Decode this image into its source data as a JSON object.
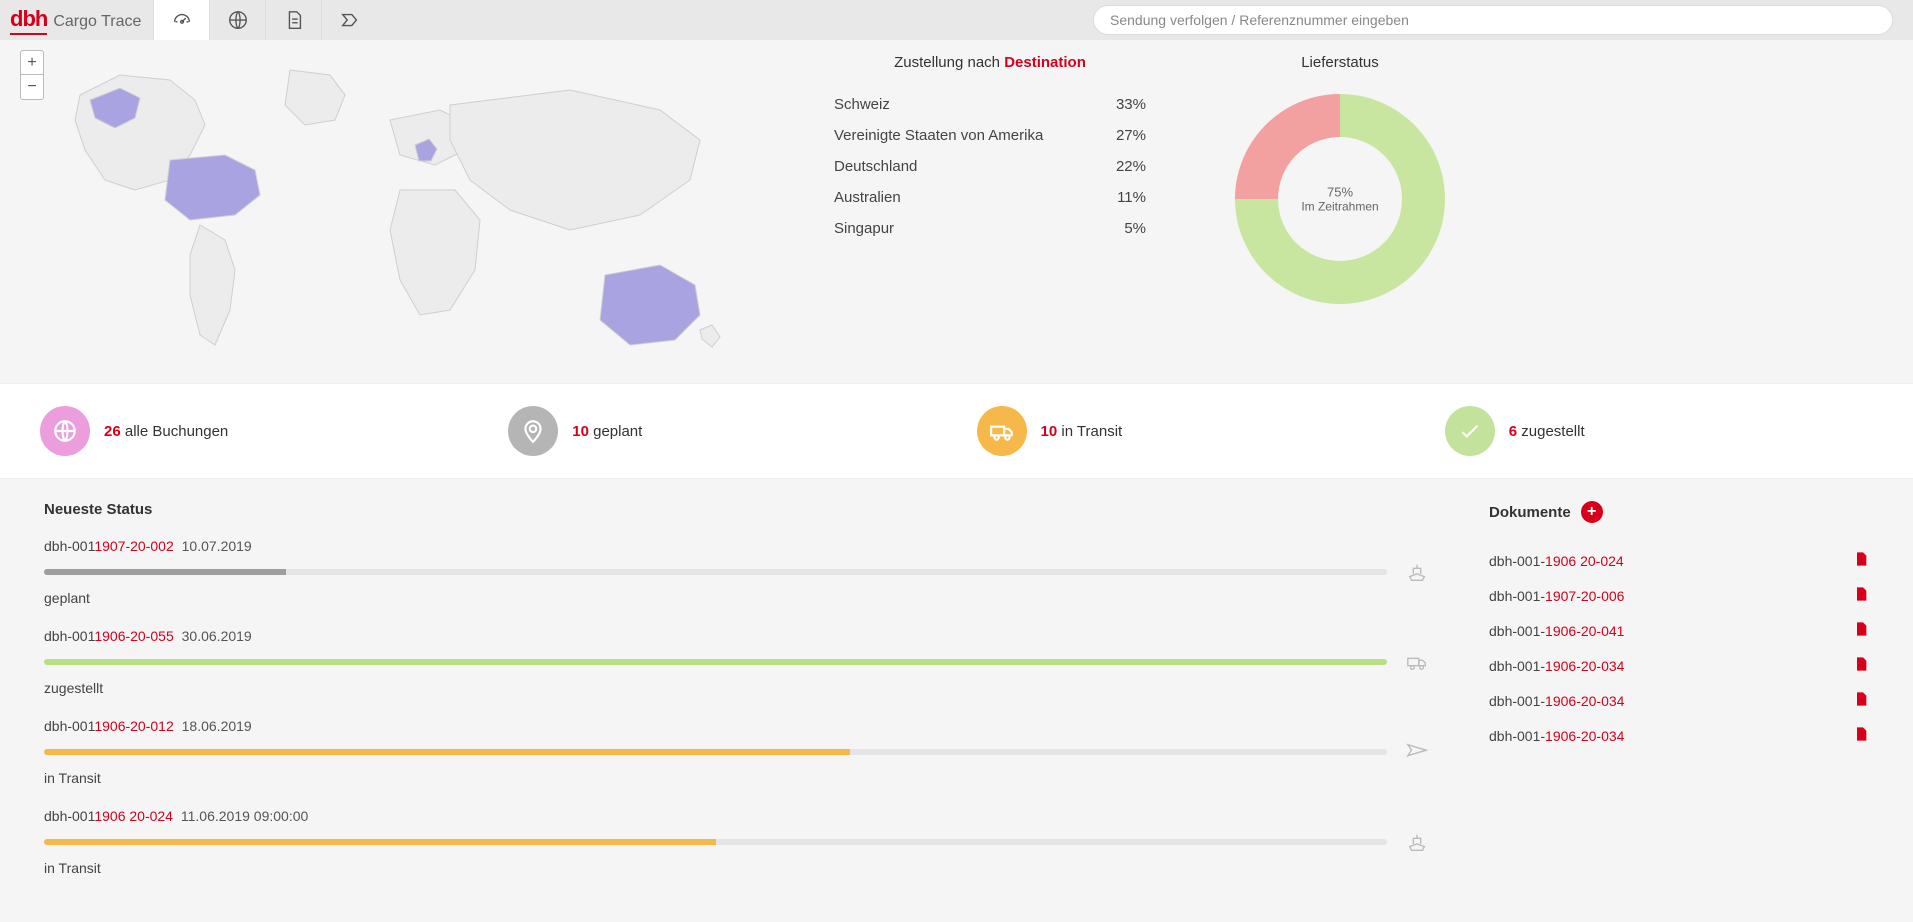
{
  "header": {
    "logo_main": "dbh",
    "logo_sub": "Cargo Trace",
    "search_placeholder": "Sendung verfolgen / Referenznummer eingeben"
  },
  "colors": {
    "accent": "#d7001b",
    "map_highlight": "#a9a4e1",
    "map_base": "#ececec",
    "map_stroke": "#cfcfcf",
    "donut_green": "#c8e6a0",
    "donut_red": "#f3a0a0",
    "kpi_pink": "#eb9edb",
    "kpi_gray": "#b5b5b5",
    "kpi_orange": "#f5b849",
    "kpi_green": "#c3e39c",
    "bar_gray": "#9e9e9e",
    "bar_green": "#b8e082",
    "bar_orange": "#f5b849"
  },
  "destinations": {
    "title_prefix": "Zustellung nach ",
    "title_accent": "Destination",
    "rows": [
      {
        "name": "Schweiz",
        "pct": "33%"
      },
      {
        "name": "Vereinigte Staaten von Amerika",
        "pct": "27%"
      },
      {
        "name": "Deutschland",
        "pct": "22%"
      },
      {
        "name": "Australien",
        "pct": "11%"
      },
      {
        "name": "Singapur",
        "pct": "5%"
      }
    ]
  },
  "donut": {
    "title": "Lieferstatus",
    "center_pct": "75%",
    "center_label": "Im Zeitrahmen",
    "green_pct": 75,
    "red_pct": 25
  },
  "kpis": [
    {
      "count": "26",
      "label": "alle Buchungen",
      "color": "#eb9edb",
      "icon": "globe"
    },
    {
      "count": "10",
      "label": "geplant",
      "color": "#b5b5b5",
      "icon": "pin"
    },
    {
      "count": "10",
      "label": "in Transit",
      "color": "#f5b849",
      "icon": "truck"
    },
    {
      "count": "6",
      "label": "zugestellt",
      "color": "#c3e39c",
      "icon": "check"
    }
  ],
  "status": {
    "heading": "Neueste Status",
    "items": [
      {
        "ref_pre": "dbh-001",
        "ref_suf": "1907-20-002",
        "date": "10.07.2019",
        "label": "geplant",
        "fill": 18,
        "color": "#9e9e9e",
        "icon": "ship"
      },
      {
        "ref_pre": "dbh-001",
        "ref_suf": "1906-20-055",
        "date": "30.06.2019",
        "label": "zugestellt",
        "fill": 100,
        "color": "#b8e082",
        "icon": "truck"
      },
      {
        "ref_pre": "dbh-001",
        "ref_suf": "1906-20-012",
        "date": "18.06.2019",
        "label": "in Transit",
        "fill": 60,
        "color": "#f5b849",
        "icon": "plane"
      },
      {
        "ref_pre": "dbh-001",
        "ref_suf": "1906 20-024",
        "date": "11.06.2019 09:00:00",
        "label": "in Transit",
        "fill": 50,
        "color": "#f5b849",
        "icon": "ship"
      }
    ]
  },
  "documents": {
    "heading": "Dokumente",
    "items": [
      {
        "pre": "dbh-001-",
        "suf": "1906 20-024"
      },
      {
        "pre": "dbh-001-",
        "suf": "1907-20-006"
      },
      {
        "pre": "dbh-001-",
        "suf": "1906-20-041"
      },
      {
        "pre": "dbh-001-",
        "suf": "1906-20-034"
      },
      {
        "pre": "dbh-001-",
        "suf": "1906-20-034"
      },
      {
        "pre": "dbh-001-",
        "suf": "1906-20-034"
      }
    ]
  }
}
